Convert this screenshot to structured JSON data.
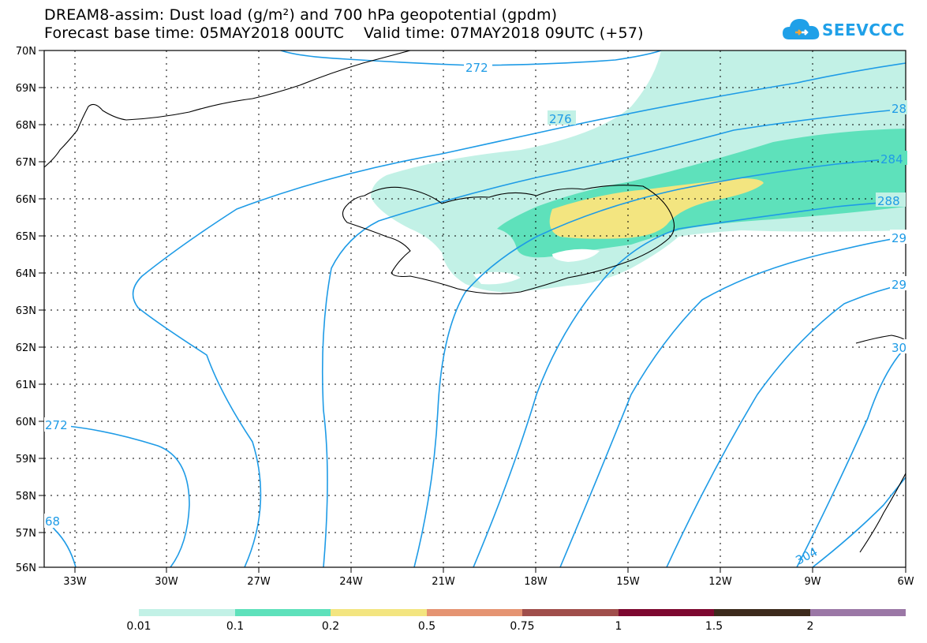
{
  "title": {
    "line1": "DREAM8-assim: Dust load (g/m²) and 700 hPa geopotential (gpdm)",
    "line2": "Forecast base time: 05MAY2018 00UTC    Valid time: 07MAY2018 09UTC (+57)"
  },
  "logo": {
    "text": "SEEVCCC",
    "icon": "cloud-icon",
    "color": "#1fa0e8"
  },
  "map": {
    "lat_labels": [
      "70N",
      "69N",
      "68N",
      "67N",
      "66N",
      "65N",
      "64N",
      "63N",
      "62N",
      "61N",
      "60N",
      "59N",
      "58N",
      "57N",
      "56N"
    ],
    "lon_labels": [
      "33W",
      "30W",
      "27W",
      "24W",
      "21W",
      "18W",
      "15W",
      "12W",
      "9W",
      "6W"
    ],
    "contour_labels": [
      "272",
      "276",
      "28",
      "284",
      "288",
      "29",
      "29",
      "30",
      "272",
      "68",
      "304"
    ],
    "contour_color": "#1e9be6",
    "coast_color": "#000000"
  },
  "legend": {
    "colors": [
      "#c2f1e6",
      "#5ee1bb",
      "#f3e580",
      "#e59472",
      "#a04e4b",
      "#7d0830",
      "#3d2a1c",
      "#9b77a6"
    ],
    "labels": [
      "0.01",
      "0.1",
      "0.2",
      "0.5",
      "0.75",
      "1",
      "1.5",
      "2"
    ]
  }
}
